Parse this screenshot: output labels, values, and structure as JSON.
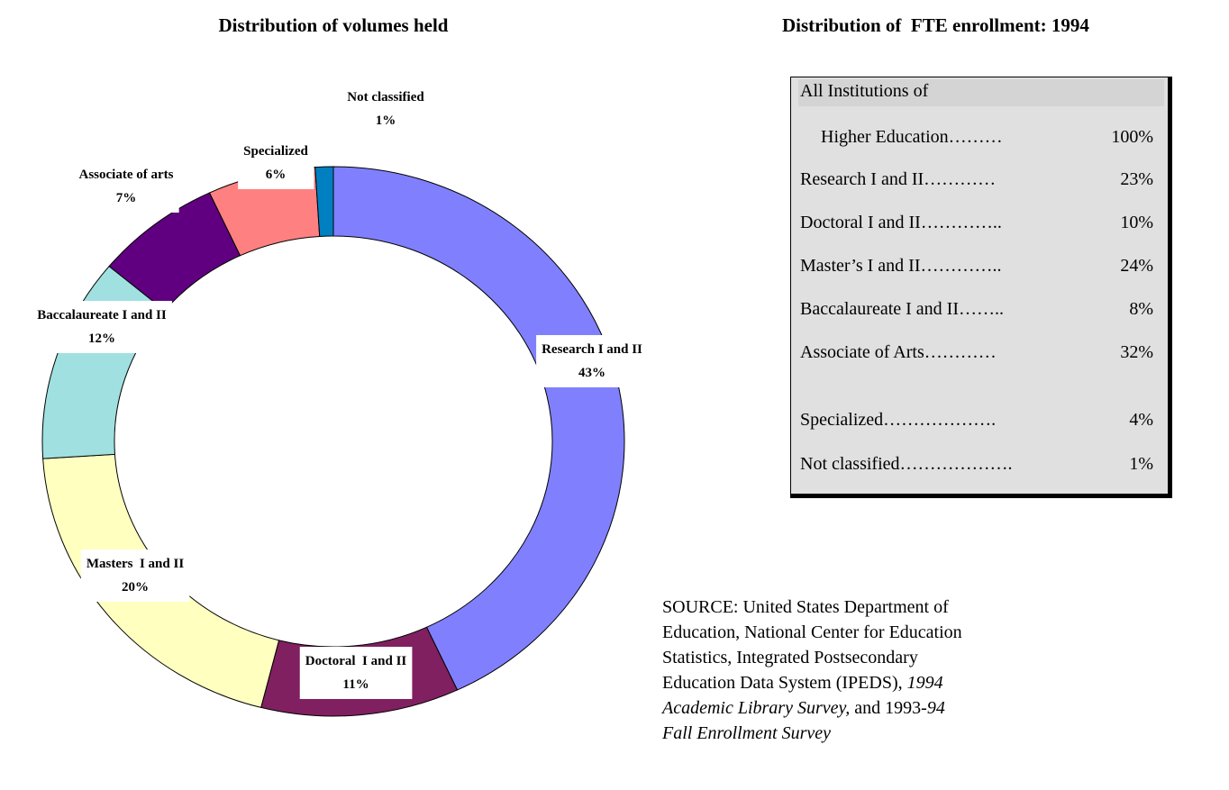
{
  "chart_data": {
    "type": "donut",
    "title": "Distribution of volumes held",
    "categories": [
      "Research I and II",
      "Doctoral  I and II",
      "Masters  I and II",
      "Baccalaureate I and II",
      "Associate of arts",
      "Specialized",
      "Not classified"
    ],
    "values": [
      43,
      11,
      20,
      12,
      7,
      6,
      1
    ],
    "value_labels": [
      "43%",
      "11%",
      "20%",
      "12%",
      "7%",
      "6%",
      "1%"
    ],
    "colors": [
      "#8080ff",
      "#802060",
      "#ffffc0",
      "#a0e0e0",
      "#600080",
      "#ff8080",
      "#0080c0"
    ]
  },
  "table": {
    "title": "Distribution of  FTE enrollment: 1994",
    "header": "All Institutions of",
    "rows": [
      {
        "label": "Higher Education………",
        "value": "100%"
      },
      {
        "label": "Research I and II…………",
        "value": "23%"
      },
      {
        "label": "Doctoral I and II…………..",
        "value": "10%"
      },
      {
        "label": "Master’s I and II…………..",
        "value": "24%"
      },
      {
        "label": "Baccalaureate I and II……..",
        "value": "8%"
      },
      {
        "label": "Associate of Arts…………",
        "value": "32%"
      },
      {
        "label": "Specialized……………….",
        "value": "4%"
      },
      {
        "label": "Not classified……………….",
        "value": "1%"
      }
    ]
  },
  "source": [
    "SOURCE: United States Department of Education, National Center for Education Statistics, Integrated Postsecondary Education Data System (IPEDS), ",
    "1994 Academic Library Survey,",
    " and 1993-",
    "94 Fall Enrollment Survey"
  ]
}
